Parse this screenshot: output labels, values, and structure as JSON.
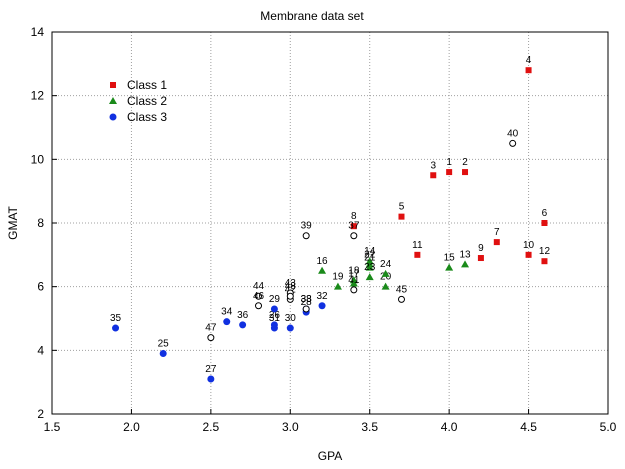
{
  "chart_data": {
    "type": "scatter",
    "title": "Membrane data set",
    "xlabel": "GPA",
    "ylabel": "GMAT",
    "xlim": [
      1.5,
      5.0
    ],
    "ylim": [
      2,
      14
    ],
    "xticks": [
      "1.5",
      "2.0",
      "2.5",
      "3.0",
      "3.5",
      "4.0",
      "4.5",
      "5.0"
    ],
    "yticks": [
      "2",
      "4",
      "6",
      "8",
      "10",
      "12",
      "14"
    ],
    "grid": true,
    "legend_position": "top-left",
    "series": [
      {
        "name": "Class 1",
        "marker": "square",
        "color": "#e01010",
        "points": [
          {
            "label": "1",
            "x": 4.0,
            "y": 9.6
          },
          {
            "label": "2",
            "x": 4.1,
            "y": 9.6
          },
          {
            "label": "3",
            "x": 3.9,
            "y": 9.5
          },
          {
            "label": "4",
            "x": 4.5,
            "y": 12.8
          },
          {
            "label": "5",
            "x": 3.7,
            "y": 8.2
          },
          {
            "label": "6",
            "x": 4.6,
            "y": 8.0
          },
          {
            "label": "7",
            "x": 4.3,
            "y": 7.4
          },
          {
            "label": "8",
            "x": 3.4,
            "y": 7.9
          },
          {
            "label": "9",
            "x": 4.2,
            "y": 6.9
          },
          {
            "label": "10",
            "x": 4.5,
            "y": 7.0
          },
          {
            "label": "11",
            "x": 3.8,
            "y": 7.0
          },
          {
            "label": "12",
            "x": 4.6,
            "y": 6.8
          }
        ]
      },
      {
        "name": "Class 2",
        "marker": "triangle",
        "color": "#1a8a1a",
        "points": [
          {
            "label": "13",
            "x": 4.1,
            "y": 6.7
          },
          {
            "label": "14",
            "x": 3.5,
            "y": 6.8
          },
          {
            "label": "15",
            "x": 4.0,
            "y": 6.6
          },
          {
            "label": "16",
            "x": 3.2,
            "y": 6.5
          },
          {
            "label": "17",
            "x": 3.4,
            "y": 6.1
          },
          {
            "label": "18",
            "x": 3.4,
            "y": 6.2
          },
          {
            "label": "19",
            "x": 3.3,
            "y": 6.0
          },
          {
            "label": "20",
            "x": 3.6,
            "y": 6.0
          },
          {
            "label": "21",
            "x": 3.5,
            "y": 6.6
          },
          {
            "label": "22",
            "x": 3.5,
            "y": 6.7
          },
          {
            "label": "23",
            "x": 3.5,
            "y": 6.3
          },
          {
            "label": "24",
            "x": 3.6,
            "y": 6.4
          }
        ]
      },
      {
        "name": "Class 3",
        "marker": "circle",
        "color": "#1030e0",
        "points": [
          {
            "label": "25",
            "x": 2.2,
            "y": 3.9
          },
          {
            "label": "26",
            "x": 2.9,
            "y": 4.8
          },
          {
            "label": "27",
            "x": 2.5,
            "y": 3.1
          },
          {
            "label": "28",
            "x": 3.1,
            "y": 5.2
          },
          {
            "label": "29",
            "x": 2.9,
            "y": 5.3
          },
          {
            "label": "30",
            "x": 3.0,
            "y": 4.7
          },
          {
            "label": "31",
            "x": 2.9,
            "y": 4.7
          },
          {
            "label": "32",
            "x": 3.2,
            "y": 5.4
          },
          {
            "label": "33",
            "x": 3.1,
            "y": 5.3
          },
          {
            "label": "34",
            "x": 2.6,
            "y": 4.9
          },
          {
            "label": "35",
            "x": 1.9,
            "y": 4.7
          },
          {
            "label": "36",
            "x": 2.7,
            "y": 4.8
          }
        ]
      },
      {
        "marker": "open-circle",
        "color": "#000000",
        "points": [
          {
            "label": "37",
            "x": 3.4,
            "y": 7.6
          },
          {
            "label": "38",
            "x": 3.1,
            "y": 5.3
          },
          {
            "label": "39",
            "x": 3.1,
            "y": 7.6
          },
          {
            "label": "40",
            "x": 4.4,
            "y": 10.5
          },
          {
            "label": "41",
            "x": 3.4,
            "y": 5.9
          },
          {
            "label": "42",
            "x": 3.0,
            "y": 5.6
          },
          {
            "label": "43",
            "x": 3.0,
            "y": 5.8
          },
          {
            "label": "44",
            "x": 2.8,
            "y": 5.7
          },
          {
            "label": "45",
            "x": 3.7,
            "y": 5.6
          },
          {
            "label": "46",
            "x": 2.8,
            "y": 5.4
          },
          {
            "label": "47",
            "x": 2.5,
            "y": 4.4
          },
          {
            "label": "48",
            "x": 3.0,
            "y": 5.7
          }
        ]
      }
    ]
  }
}
